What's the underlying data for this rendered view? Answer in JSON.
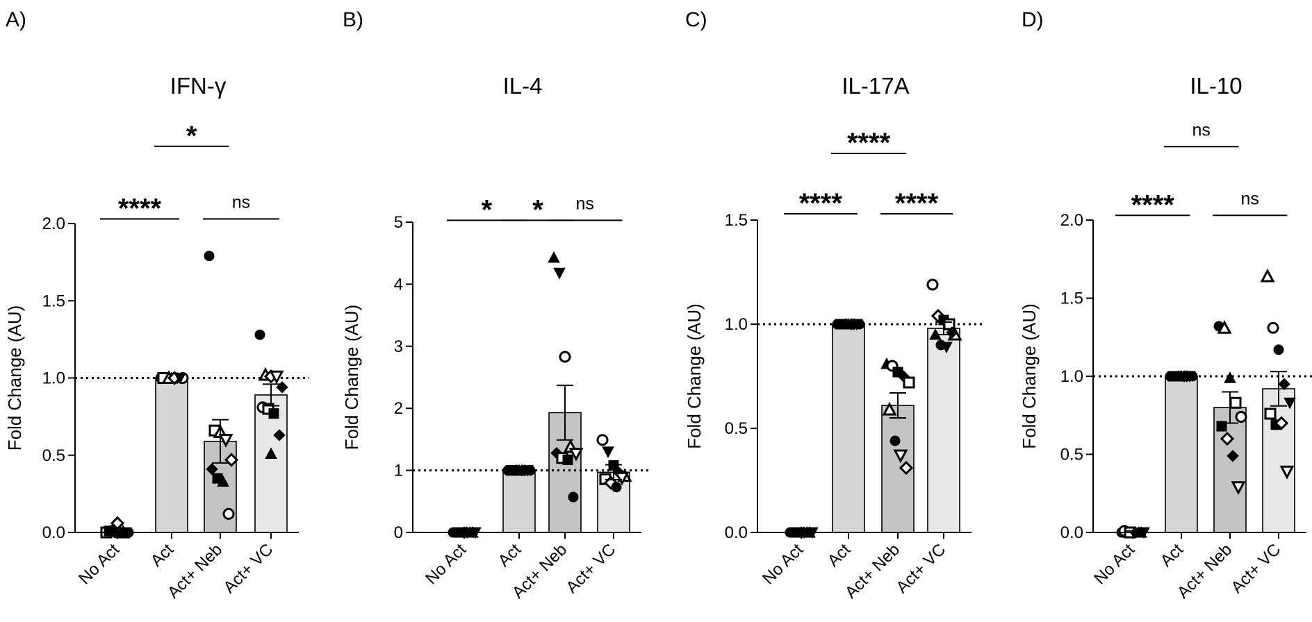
{
  "figure": {
    "layout": "1x4 bar charts with individual data points"
  },
  "chart_data": [
    {
      "type": "bar",
      "panel_label": "A)",
      "title": "IFN-γ",
      "ylabel": "Fold Change (AU)",
      "xlabel": "",
      "ylim": [
        0,
        2.0
      ],
      "yticks": [
        0,
        0.5,
        1.0,
        1.5,
        2.0
      ],
      "ytick_labels": [
        "0.0",
        "0.5",
        "1.0",
        "1.5",
        "2.0"
      ],
      "reference_line": 1.0,
      "categories": [
        "No Act",
        "Act",
        "Act+ Neb",
        "Act+ VC"
      ],
      "bar_colors": [
        "#d6d6d6",
        "#d6d6d6",
        "#c4c4c4",
        "#e8e8e8"
      ],
      "values": [
        0.0,
        1.0,
        0.59,
        0.89
      ],
      "sem": [
        0.01,
        0.0,
        0.14,
        0.07
      ],
      "points": [
        [
          {
            "y": 0.0,
            "m": "square-open"
          },
          {
            "y": 0.01,
            "m": "circle-open"
          },
          {
            "y": 0.06,
            "m": "diamond-open"
          },
          {
            "y": 0.0,
            "m": "triangle-open"
          },
          {
            "y": 0.0,
            "m": "circle"
          },
          {
            "y": 0.01,
            "m": "square"
          },
          {
            "y": 0.0,
            "m": "diamond"
          },
          {
            "y": 0.0,
            "m": "triangle"
          },
          {
            "y": 0.0,
            "m": "triangle-down"
          }
        ],
        [
          {
            "y": 1.0,
            "m": "circle"
          },
          {
            "y": 1.0,
            "m": "square"
          },
          {
            "y": 1.0,
            "m": "triangle"
          },
          {
            "y": 1.0,
            "m": "diamond"
          },
          {
            "y": 1.0,
            "m": "circle-open"
          },
          {
            "y": 1.0,
            "m": "square-open"
          },
          {
            "y": 1.0,
            "m": "triangle-open"
          },
          {
            "y": 1.0,
            "m": "diamond-open"
          },
          {
            "y": 1.0,
            "m": "triangle-down"
          }
        ],
        [
          {
            "y": 1.79,
            "m": "circle"
          },
          {
            "y": 0.66,
            "m": "square-open"
          },
          {
            "y": 0.65,
            "m": "triangle-open"
          },
          {
            "y": 0.6,
            "m": "triangle-down-open"
          },
          {
            "y": 0.47,
            "m": "diamond-open"
          },
          {
            "y": 0.41,
            "m": "diamond"
          },
          {
            "y": 0.35,
            "m": "square"
          },
          {
            "y": 0.33,
            "m": "triangle"
          },
          {
            "y": 0.12,
            "m": "circle-open"
          }
        ],
        [
          {
            "y": 1.28,
            "m": "circle"
          },
          {
            "y": 1.02,
            "m": "triangle-open"
          },
          {
            "y": 1.01,
            "m": "diamond-open"
          },
          {
            "y": 1.01,
            "m": "triangle-down-open"
          },
          {
            "y": 0.94,
            "m": "diamond"
          },
          {
            "y": 0.81,
            "m": "circle-open"
          },
          {
            "y": 0.8,
            "m": "square-open"
          },
          {
            "y": 0.77,
            "m": "square"
          },
          {
            "y": 0.63,
            "m": "diamond"
          },
          {
            "y": 0.51,
            "m": "triangle"
          }
        ]
      ],
      "significance": [
        {
          "label": "****",
          "from": 0,
          "to": 1,
          "y": 2.03
        },
        {
          "label": "*",
          "from": 1,
          "to": 2,
          "y": 2.5
        },
        {
          "label": "ns",
          "from": 2,
          "to": 3,
          "y": 2.03
        }
      ]
    },
    {
      "type": "bar",
      "panel_label": "B)",
      "title": "IL-4",
      "ylabel": "Fold Change (AU)",
      "xlabel": "",
      "ylim": [
        0,
        5
      ],
      "yticks": [
        0,
        1,
        2,
        3,
        4,
        5
      ],
      "ytick_labels": [
        "0",
        "1",
        "2",
        "3",
        "4",
        "5"
      ],
      "reference_line": 1,
      "categories": [
        "No Act",
        "Act",
        "Act+ Neb",
        "Act+ VC"
      ],
      "bar_colors": [
        "#d6d6d6",
        "#d6d6d6",
        "#c4c4c4",
        "#e8e8e8"
      ],
      "values": [
        0.0,
        1.0,
        1.93,
        0.97
      ],
      "sem": [
        0.01,
        0.0,
        0.44,
        0.12
      ],
      "points": [
        [
          {
            "y": 0.0,
            "m": "circle"
          },
          {
            "y": 0.0,
            "m": "square"
          },
          {
            "y": 0.0,
            "m": "diamond"
          },
          {
            "y": 0.0,
            "m": "triangle"
          },
          {
            "y": 0.0,
            "m": "triangle-down"
          },
          {
            "y": 0.0,
            "m": "circle"
          },
          {
            "y": 0.0,
            "m": "square"
          },
          {
            "y": 0.0,
            "m": "diamond"
          },
          {
            "y": 0.0,
            "m": "triangle"
          }
        ],
        [
          {
            "y": 1.0,
            "m": "circle"
          },
          {
            "y": 1.0,
            "m": "square"
          },
          {
            "y": 1.0,
            "m": "triangle"
          },
          {
            "y": 1.0,
            "m": "diamond"
          },
          {
            "y": 1.0,
            "m": "circle"
          },
          {
            "y": 1.0,
            "m": "square"
          },
          {
            "y": 1.0,
            "m": "triangle"
          },
          {
            "y": 1.0,
            "m": "diamond"
          },
          {
            "y": 1.0,
            "m": "triangle-down"
          }
        ],
        [
          {
            "y": 4.43,
            "m": "triangle"
          },
          {
            "y": 4.18,
            "m": "triangle-down"
          },
          {
            "y": 2.83,
            "m": "circle-open"
          },
          {
            "y": 1.38,
            "m": "triangle-open"
          },
          {
            "y": 1.27,
            "m": "triangle-down-open"
          },
          {
            "y": 1.28,
            "m": "diamond"
          },
          {
            "y": 1.2,
            "m": "square-open"
          },
          {
            "y": 1.17,
            "m": "square"
          },
          {
            "y": 0.57,
            "m": "circle"
          }
        ],
        [
          {
            "y": 1.49,
            "m": "circle-open"
          },
          {
            "y": 1.3,
            "m": "triangle-down"
          },
          {
            "y": 1.08,
            "m": "square"
          },
          {
            "y": 0.96,
            "m": "diamond"
          },
          {
            "y": 0.91,
            "m": "triangle-open"
          },
          {
            "y": 0.86,
            "m": "square-open"
          },
          {
            "y": 0.8,
            "m": "diamond-open"
          },
          {
            "y": 0.73,
            "m": "circle"
          },
          {
            "y": 0.88,
            "m": "triangle-down-open"
          }
        ]
      ],
      "significance": [
        {
          "label": "*",
          "from": 0,
          "to": 1,
          "y": 5.03
        },
        {
          "label": "*",
          "from": 1,
          "to": 2,
          "y": 5.03
        },
        {
          "label": "ns",
          "from": 2,
          "to": 3,
          "y": 5.03
        }
      ]
    },
    {
      "type": "bar",
      "panel_label": "C)",
      "title": "IL-17A",
      "ylabel": "Fold Change (AU)",
      "xlabel": "",
      "ylim": [
        0,
        1.5
      ],
      "yticks": [
        0,
        0.5,
        1.0,
        1.5
      ],
      "ytick_labels": [
        "0.0",
        "0.5",
        "1.0",
        "1.5"
      ],
      "reference_line": 1.0,
      "categories": [
        "No Act",
        "Act",
        "Act+ Neb",
        "Act+ VC"
      ],
      "bar_colors": [
        "#d6d6d6",
        "#d6d6d6",
        "#c4c4c4",
        "#e8e8e8"
      ],
      "values": [
        0.0,
        1.0,
        0.61,
        0.98
      ],
      "sem": [
        0.01,
        0.0,
        0.06,
        0.03
      ],
      "points": [
        [
          {
            "y": 0.0,
            "m": "circle"
          },
          {
            "y": 0.0,
            "m": "square"
          },
          {
            "y": 0.0,
            "m": "diamond"
          },
          {
            "y": 0.0,
            "m": "triangle"
          },
          {
            "y": 0.0,
            "m": "triangle-down"
          },
          {
            "y": 0.0,
            "m": "circle"
          },
          {
            "y": 0.0,
            "m": "square"
          },
          {
            "y": 0.0,
            "m": "diamond"
          },
          {
            "y": 0.0,
            "m": "triangle"
          }
        ],
        [
          {
            "y": 1.0,
            "m": "circle"
          },
          {
            "y": 1.0,
            "m": "square"
          },
          {
            "y": 1.0,
            "m": "triangle"
          },
          {
            "y": 1.0,
            "m": "diamond"
          },
          {
            "y": 1.0,
            "m": "circle"
          },
          {
            "y": 1.0,
            "m": "square"
          },
          {
            "y": 1.0,
            "m": "triangle"
          },
          {
            "y": 1.0,
            "m": "diamond"
          },
          {
            "y": 1.0,
            "m": "triangle-down"
          }
        ],
        [
          {
            "y": 0.81,
            "m": "triangle"
          },
          {
            "y": 0.8,
            "m": "circle-open"
          },
          {
            "y": 0.77,
            "m": "square"
          },
          {
            "y": 0.75,
            "m": "diamond"
          },
          {
            "y": 0.72,
            "m": "square-open"
          },
          {
            "y": 0.59,
            "m": "triangle-open"
          },
          {
            "y": 0.44,
            "m": "circle"
          },
          {
            "y": 0.37,
            "m": "triangle-down-open"
          },
          {
            "y": 0.31,
            "m": "diamond-open"
          }
        ],
        [
          {
            "y": 1.19,
            "m": "circle-open"
          },
          {
            "y": 1.04,
            "m": "diamond-open"
          },
          {
            "y": 1.02,
            "m": "square"
          },
          {
            "y": 1.0,
            "m": "square-open"
          },
          {
            "y": 0.95,
            "m": "triangle-open"
          },
          {
            "y": 0.95,
            "m": "triangle"
          },
          {
            "y": 0.9,
            "m": "circle"
          },
          {
            "y": 0.89,
            "m": "triangle-down"
          },
          {
            "y": 0.96,
            "m": "diamond"
          }
        ]
      ],
      "significance": [
        {
          "label": "****",
          "from": 0,
          "to": 1,
          "y": 1.53
        },
        {
          "label": "****",
          "from": 1,
          "to": 2,
          "y": 1.82
        },
        {
          "label": "****",
          "from": 2,
          "to": 3,
          "y": 1.53
        }
      ]
    },
    {
      "type": "bar",
      "panel_label": "D)",
      "title": "IL-10",
      "ylabel": "Fold Change (AU)",
      "xlabel": "",
      "ylim": [
        0,
        2.0
      ],
      "yticks": [
        0,
        0.5,
        1.0,
        1.5,
        2.0
      ],
      "ytick_labels": [
        "0.0",
        "0.5",
        "1.0",
        "1.5",
        "2.0"
      ],
      "reference_line": 1.0,
      "categories": [
        "No Act",
        "Act",
        "Act+ Neb",
        "Act+ VC"
      ],
      "bar_colors": [
        "#d6d6d6",
        "#d6d6d6",
        "#c4c4c4",
        "#e8e8e8"
      ],
      "values": [
        0.0,
        1.0,
        0.8,
        0.92
      ],
      "sem": [
        0.01,
        0.0,
        0.1,
        0.11
      ],
      "points": [
        [
          {
            "y": 0.0,
            "m": "circle"
          },
          {
            "y": 0.0,
            "m": "square"
          },
          {
            "y": 0.0,
            "m": "diamond"
          },
          {
            "y": 0.0,
            "m": "triangle"
          },
          {
            "y": 0.0,
            "m": "triangle-down"
          },
          {
            "y": 0.01,
            "m": "circle-open"
          },
          {
            "y": 0.0,
            "m": "square-open"
          },
          {
            "y": 0.0,
            "m": "diamond"
          },
          {
            "y": 0.0,
            "m": "triangle"
          }
        ],
        [
          {
            "y": 1.0,
            "m": "circle"
          },
          {
            "y": 1.0,
            "m": "square"
          },
          {
            "y": 1.0,
            "m": "triangle"
          },
          {
            "y": 1.0,
            "m": "diamond"
          },
          {
            "y": 1.0,
            "m": "circle"
          },
          {
            "y": 1.0,
            "m": "square"
          },
          {
            "y": 1.0,
            "m": "triangle"
          },
          {
            "y": 1.0,
            "m": "diamond"
          },
          {
            "y": 1.0,
            "m": "triangle-down"
          }
        ],
        [
          {
            "y": 1.32,
            "m": "circle"
          },
          {
            "y": 1.31,
            "m": "triangle-open"
          },
          {
            "y": 0.99,
            "m": "triangle"
          },
          {
            "y": 0.83,
            "m": "square-open"
          },
          {
            "y": 0.74,
            "m": "circle-open"
          },
          {
            "y": 0.68,
            "m": "square"
          },
          {
            "y": 0.6,
            "m": "diamond-open"
          },
          {
            "y": 0.49,
            "m": "diamond"
          },
          {
            "y": 0.29,
            "m": "triangle-down-open"
          }
        ],
        [
          {
            "y": 1.64,
            "m": "triangle-open"
          },
          {
            "y": 1.31,
            "m": "circle-open"
          },
          {
            "y": 1.17,
            "m": "circle"
          },
          {
            "y": 0.95,
            "m": "diamond"
          },
          {
            "y": 0.83,
            "m": "triangle-down"
          },
          {
            "y": 0.76,
            "m": "square-open"
          },
          {
            "y": 0.69,
            "m": "square"
          },
          {
            "y": 0.7,
            "m": "diamond-open"
          },
          {
            "y": 0.39,
            "m": "triangle-down-open"
          }
        ]
      ],
      "significance": [
        {
          "label": "****",
          "from": 0,
          "to": 1,
          "y": 2.03
        },
        {
          "label": "ns",
          "from": 1,
          "to": 2,
          "y": 2.47
        },
        {
          "label": "ns",
          "from": 2,
          "to": 3,
          "y": 2.03
        }
      ]
    }
  ]
}
